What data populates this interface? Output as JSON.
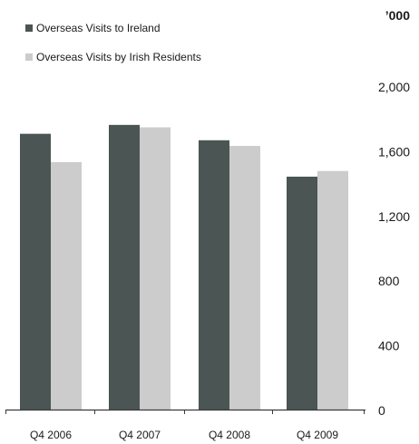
{
  "chart_data": {
    "type": "bar",
    "unit_label": "’000",
    "categories": [
      "Q4 2006",
      "Q4 2007",
      "Q4 2008",
      "Q4 2009"
    ],
    "series": [
      {
        "name": "Overseas Visits to Ireland",
        "color": "#4b5553",
        "values": [
          1705,
          1760,
          1665,
          1440
        ]
      },
      {
        "name": "Overseas Visits by Irish Residents",
        "color": "#cccccc",
        "values": [
          1530,
          1745,
          1630,
          1475
        ]
      }
    ],
    "ylim": [
      0,
      2000
    ],
    "yticks": [
      0,
      400,
      800,
      1200,
      1600,
      2000
    ],
    "ytick_labels": [
      "0",
      "400",
      "800",
      "1,200",
      "1,600",
      "2,000"
    ],
    "axis_position": "right",
    "legend_position": "top-left",
    "grid": false
  }
}
